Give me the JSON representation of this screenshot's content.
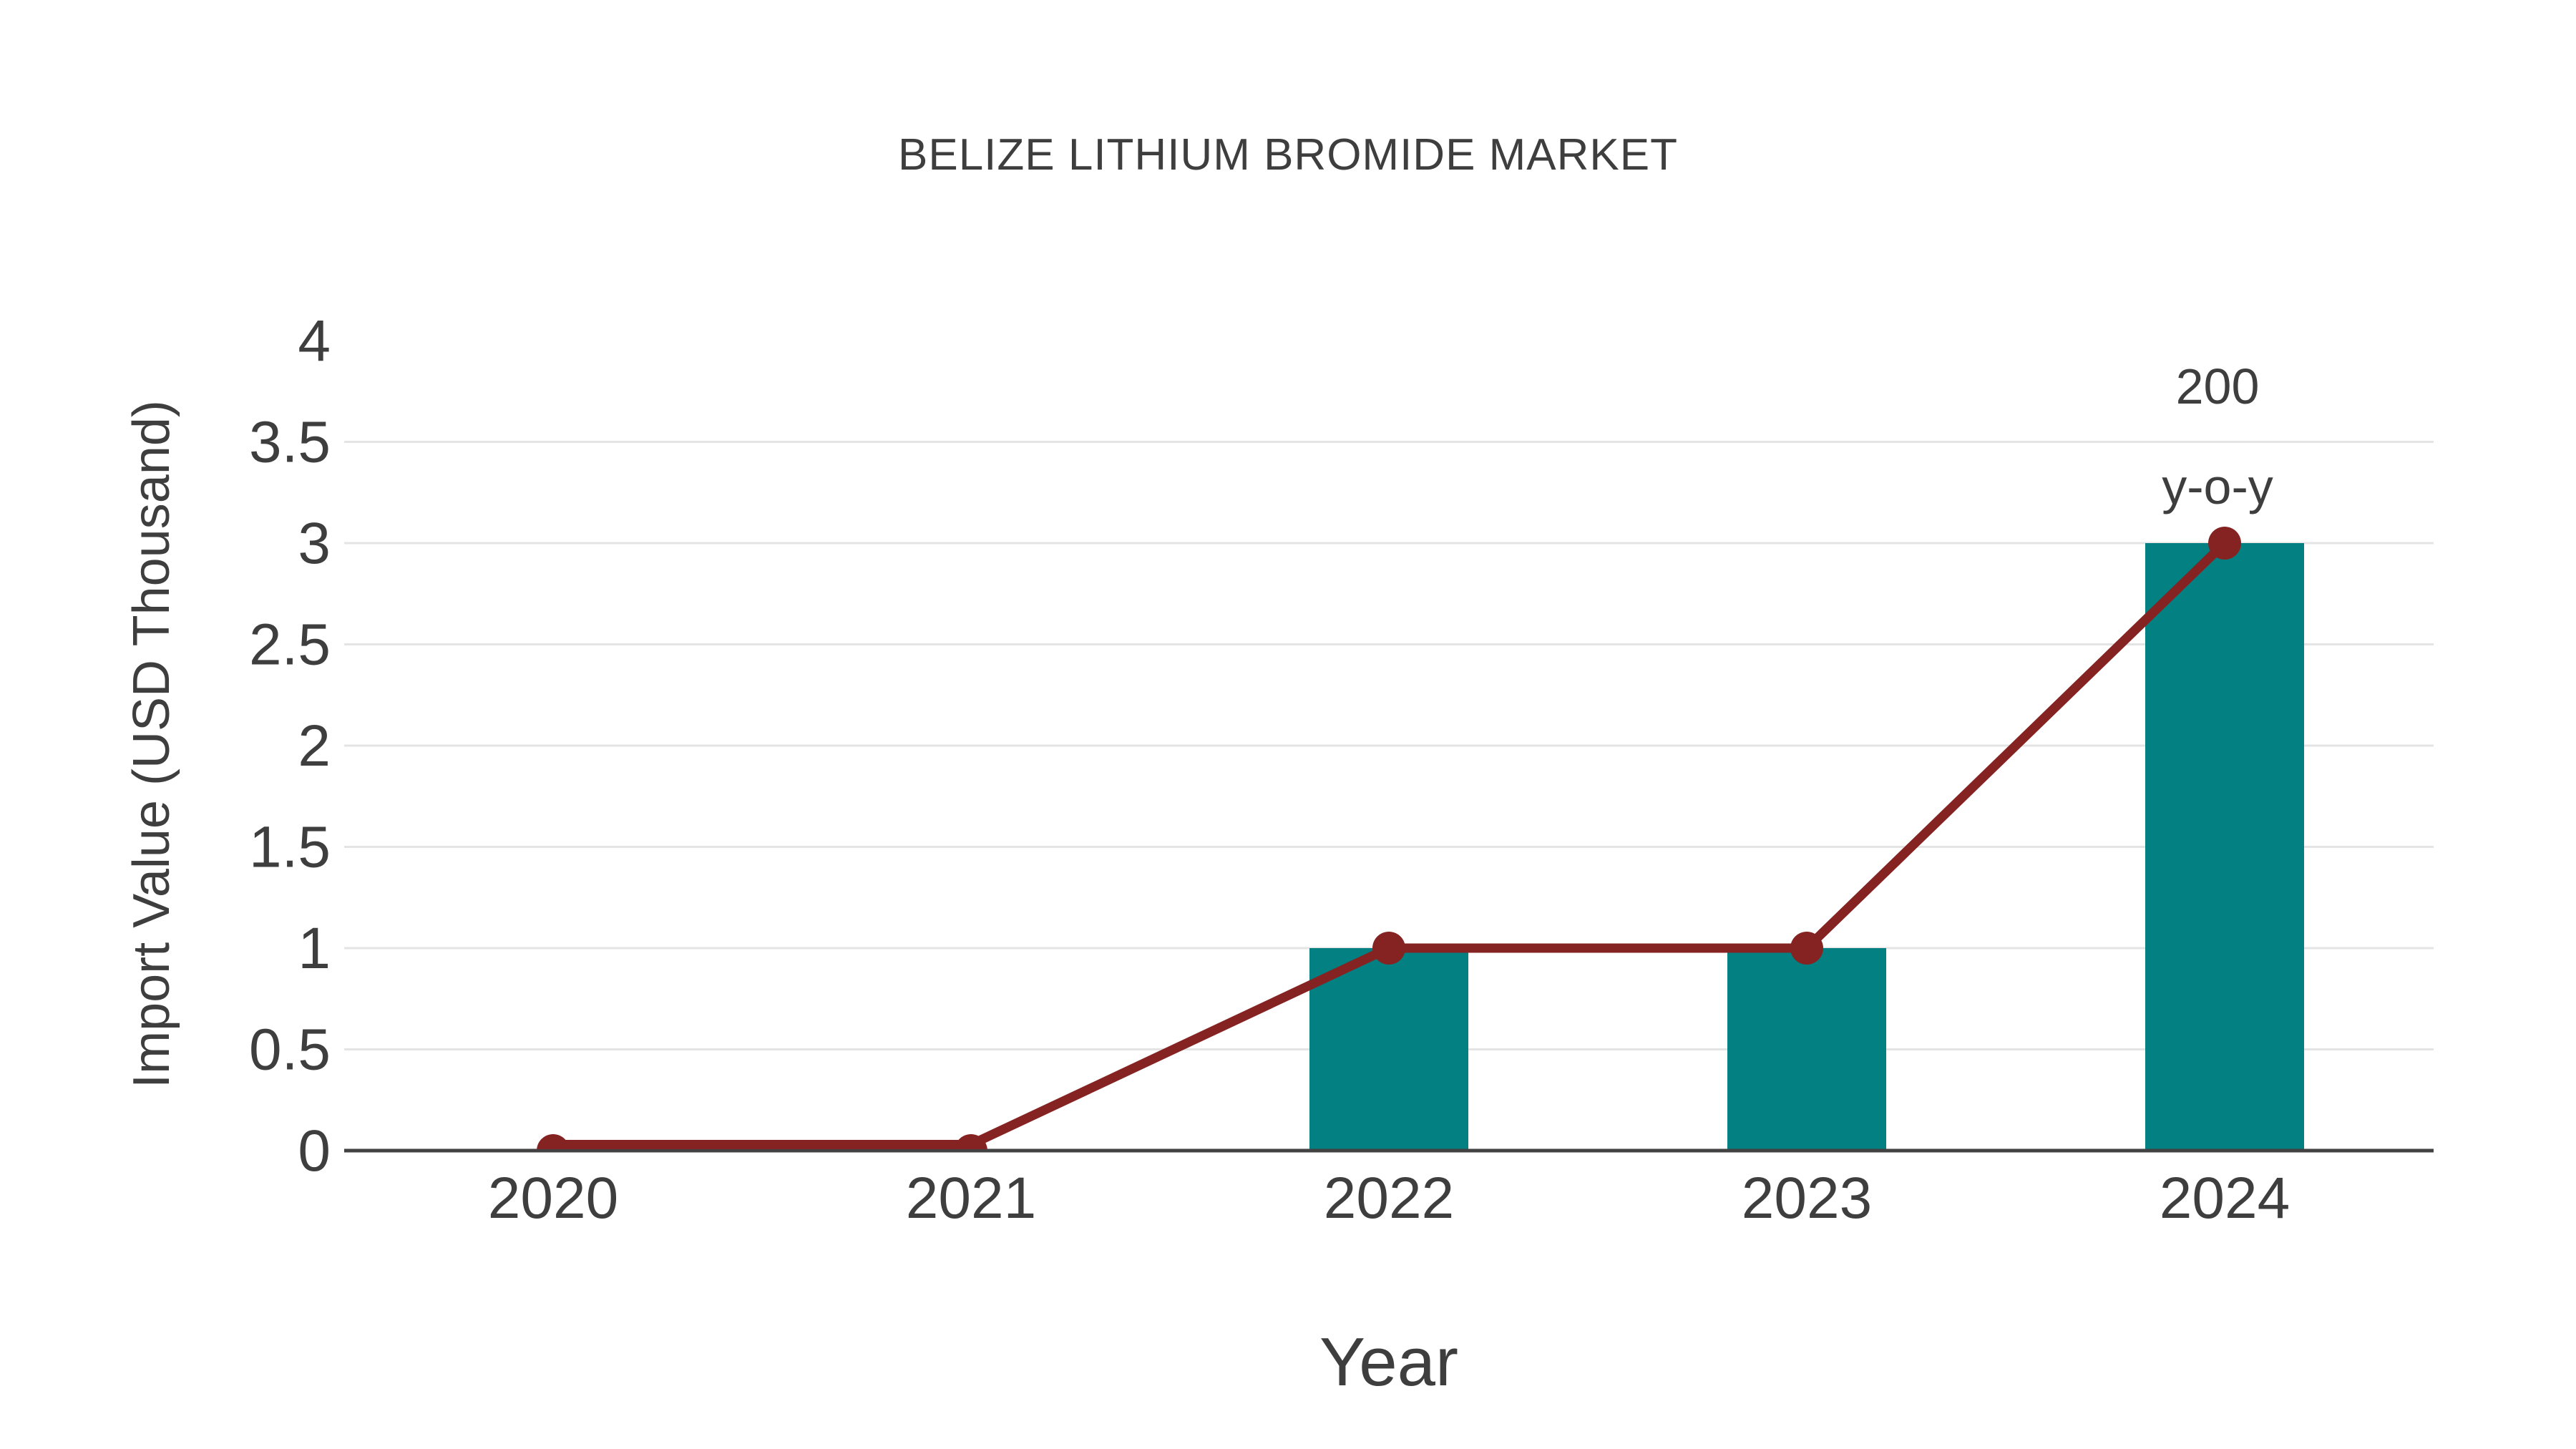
{
  "page": {
    "background": "#ffffff"
  },
  "chart_data": {
    "type": "bar",
    "title": "BELIZE LITHIUM BROMIDE MARKET",
    "xlabel": "Year",
    "ylabel": "Import Value (USD Thousand)",
    "categories": [
      "2020",
      "2021",
      "2022",
      "2023",
      "2024"
    ],
    "series": [
      {
        "name": "Import Value bars",
        "type": "bar",
        "values": [
          0,
          0,
          1,
          1,
          3
        ],
        "color": "#038082"
      },
      {
        "name": "Import Value trend",
        "type": "line",
        "values": [
          0,
          0,
          1,
          1,
          3
        ],
        "color": "#842322"
      }
    ],
    "ylim": [
      0,
      4
    ],
    "yticks": [
      0,
      0.5,
      1,
      1.5,
      2,
      2.5,
      3,
      3.5,
      4
    ],
    "ytick_labels": [
      "0",
      "0.5",
      "1",
      "1.5",
      "2",
      "2.5",
      "3",
      "3.5",
      "4"
    ],
    "grid": true,
    "legend_position": "none",
    "annotation": {
      "lines": [
        "200",
        "y-o-y"
      ],
      "target_category": "2024",
      "target_value": 3
    },
    "colors": {
      "bar": "#038082",
      "line": "#842322",
      "axis": "#424242",
      "grid": "#e4e4e4",
      "text": "#3e3e3e",
      "background": "#ffffff"
    }
  }
}
